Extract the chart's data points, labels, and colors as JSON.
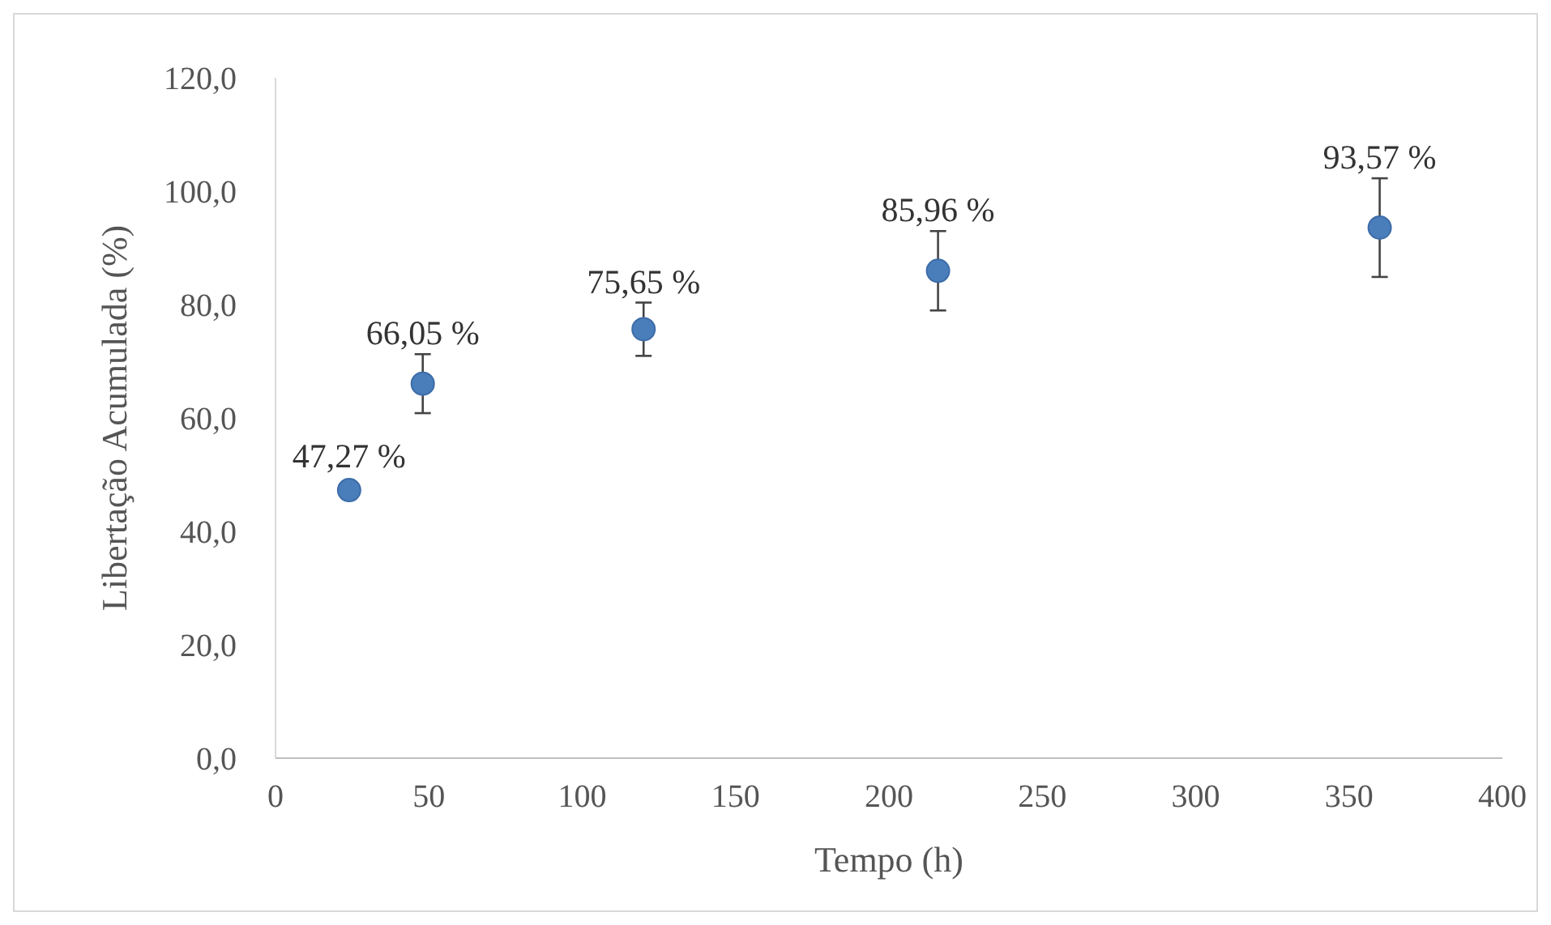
{
  "chart_data": {
    "type": "scatter",
    "xlabel": "Tempo (h)",
    "ylabel": "Libertação Acumulada (%)",
    "x": [
      24,
      48,
      120,
      216,
      360
    ],
    "series": [
      {
        "color": "#4a7ebb",
        "values": [
          47.27,
          66.05,
          75.65,
          85.96,
          93.57
        ],
        "errors": [
          null,
          5.2,
          4.7,
          7,
          8.7
        ],
        "value_labels": [
          "47,27 %",
          "66,05 %",
          "75,65 %",
          "85,96 %",
          "93,57 %"
        ]
      }
    ],
    "xlim": [
      0,
      400
    ],
    "xticks": [
      0,
      50,
      100,
      150,
      200,
      250,
      300,
      350,
      400
    ],
    "ylim": [
      0,
      120
    ],
    "yticks": [
      {
        "value": 0,
        "label": "0,0"
      },
      {
        "value": 20,
        "label": "20,0"
      },
      {
        "value": 40,
        "label": "40,0"
      },
      {
        "value": 60,
        "label": "60,0"
      },
      {
        "value": 80,
        "label": "80,0"
      },
      {
        "value": 100,
        "label": "100,0"
      },
      {
        "value": 120,
        "label": "120,0"
      }
    ],
    "marker": "circle"
  }
}
